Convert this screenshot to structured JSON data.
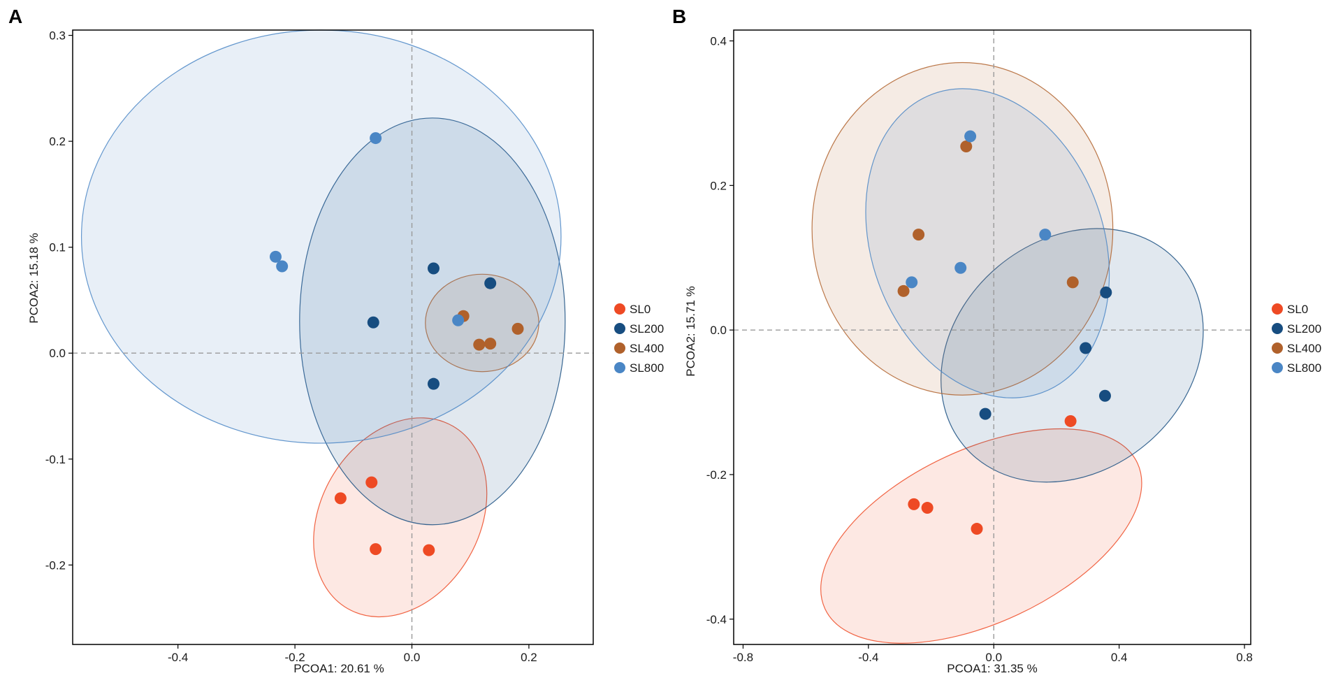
{
  "chart_data": [
    {
      "panel": "A",
      "type": "scatter",
      "xlabel": "PCOA1:  20.61 %",
      "ylabel": "PCOA2:  15.18 %",
      "xlim": [
        -0.58,
        0.31
      ],
      "ylim": [
        -0.275,
        0.305
      ],
      "xticks": [
        -0.4,
        -0.2,
        0.0,
        0.2
      ],
      "xtick_labels": [
        "-0.4",
        "-0.2",
        "0.0",
        "0.2"
      ],
      "yticks": [
        -0.2,
        -0.1,
        0.0,
        0.1,
        0.2,
        0.3
      ],
      "ytick_labels": [
        "-0.2",
        "-0.1",
        "0.0",
        "0.1",
        "0.2",
        "0.3"
      ],
      "series": [
        {
          "name": "SL0",
          "color": "#ee4a24",
          "points": [
            [
              -0.122,
              -0.137
            ],
            [
              -0.069,
              -0.122
            ],
            [
              -0.062,
              -0.185
            ],
            [
              0.029,
              -0.186
            ]
          ],
          "ellipse": {
            "cx": -0.02,
            "cy": -0.155,
            "rx": 0.18,
            "ry": 0.075,
            "angle": -60
          }
        },
        {
          "name": "SL200",
          "color": "#174d80",
          "points": [
            [
              -0.066,
              0.029
            ],
            [
              0.037,
              0.08
            ],
            [
              0.134,
              0.066
            ],
            [
              0.037,
              -0.029
            ]
          ],
          "ellipse": {
            "cx": 0.035,
            "cy": 0.03,
            "rx": 0.227,
            "ry": 0.192,
            "angle": 0
          }
        },
        {
          "name": "SL400",
          "color": "#b0612b",
          "points": [
            [
              0.088,
              0.035
            ],
            [
              0.115,
              0.008
            ],
            [
              0.134,
              0.009
            ],
            [
              0.181,
              0.023
            ]
          ],
          "ellipse": {
            "cx": 0.12,
            "cy": 0.0285,
            "rx": 0.097,
            "ry": 0.046,
            "angle": 0
          }
        },
        {
          "name": "SL800",
          "color": "#4a86c5",
          "points": [
            [
              -0.062,
              0.203
            ],
            [
              -0.233,
              0.091
            ],
            [
              -0.222,
              0.082
            ],
            [
              0.079,
              0.031
            ]
          ],
          "ellipse": {
            "cx": -0.155,
            "cy": 0.11,
            "rx": 0.41,
            "ry": 0.195,
            "angle": 0
          }
        }
      ]
    },
    {
      "panel": "B",
      "type": "scatter",
      "xlabel": "PCOA1:  31.35 %",
      "ylabel": "PCOA2:  15.71 %",
      "xlim": [
        -0.83,
        0.82
      ],
      "ylim": [
        -0.435,
        0.415
      ],
      "xticks": [
        -0.8,
        -0.4,
        0.0,
        0.4,
        0.8
      ],
      "xtick_labels": [
        "-0.8",
        "-0.4",
        "0.0",
        "0.4",
        "0.8"
      ],
      "yticks": [
        -0.4,
        -0.2,
        0.0,
        0.2,
        0.4
      ],
      "ytick_labels": [
        "-0.4",
        "-0.2",
        "0.0",
        "0.2",
        "0.4"
      ],
      "series": [
        {
          "name": "SL0",
          "color": "#ee4a24",
          "points": [
            [
              -0.255,
              -0.241
            ],
            [
              -0.212,
              -0.246
            ],
            [
              -0.054,
              -0.275
            ],
            [
              0.245,
              -0.126
            ]
          ],
          "ellipse": {
            "cx": -0.04,
            "cy": -0.285,
            "rx": 0.55,
            "ry": 0.12,
            "angle": -25
          }
        },
        {
          "name": "SL200",
          "color": "#174d80",
          "points": [
            [
              -0.027,
              -0.116
            ],
            [
              0.293,
              -0.025
            ],
            [
              0.355,
              -0.091
            ],
            [
              0.358,
              0.052
            ]
          ],
          "ellipse": {
            "cx": 0.25,
            "cy": -0.035,
            "rx": 0.45,
            "ry": 0.16,
            "angle": -40
          }
        },
        {
          "name": "SL400",
          "color": "#b0612b",
          "points": [
            [
              -0.088,
              0.254
            ],
            [
              -0.24,
              0.132
            ],
            [
              -0.288,
              0.054
            ],
            [
              0.252,
              0.066
            ]
          ],
          "ellipse": {
            "cx": -0.1,
            "cy": 0.14,
            "rx": 0.48,
            "ry": 0.23,
            "angle": 0
          }
        },
        {
          "name": "SL800",
          "color": "#4a86c5",
          "points": [
            [
              -0.075,
              0.268
            ],
            [
              -0.262,
              0.066
            ],
            [
              -0.106,
              0.086
            ],
            [
              0.164,
              0.132
            ]
          ],
          "ellipse": {
            "cx": -0.02,
            "cy": 0.12,
            "rx": 0.37,
            "ry": 0.22,
            "angle": -20
          }
        }
      ]
    }
  ],
  "legend": {
    "items": [
      {
        "label": "SL0",
        "color": "#ee4a24"
      },
      {
        "label": "SL200",
        "color": "#174d80"
      },
      {
        "label": "SL400",
        "color": "#b0612b"
      },
      {
        "label": "SL800",
        "color": "#4a86c5"
      }
    ]
  }
}
